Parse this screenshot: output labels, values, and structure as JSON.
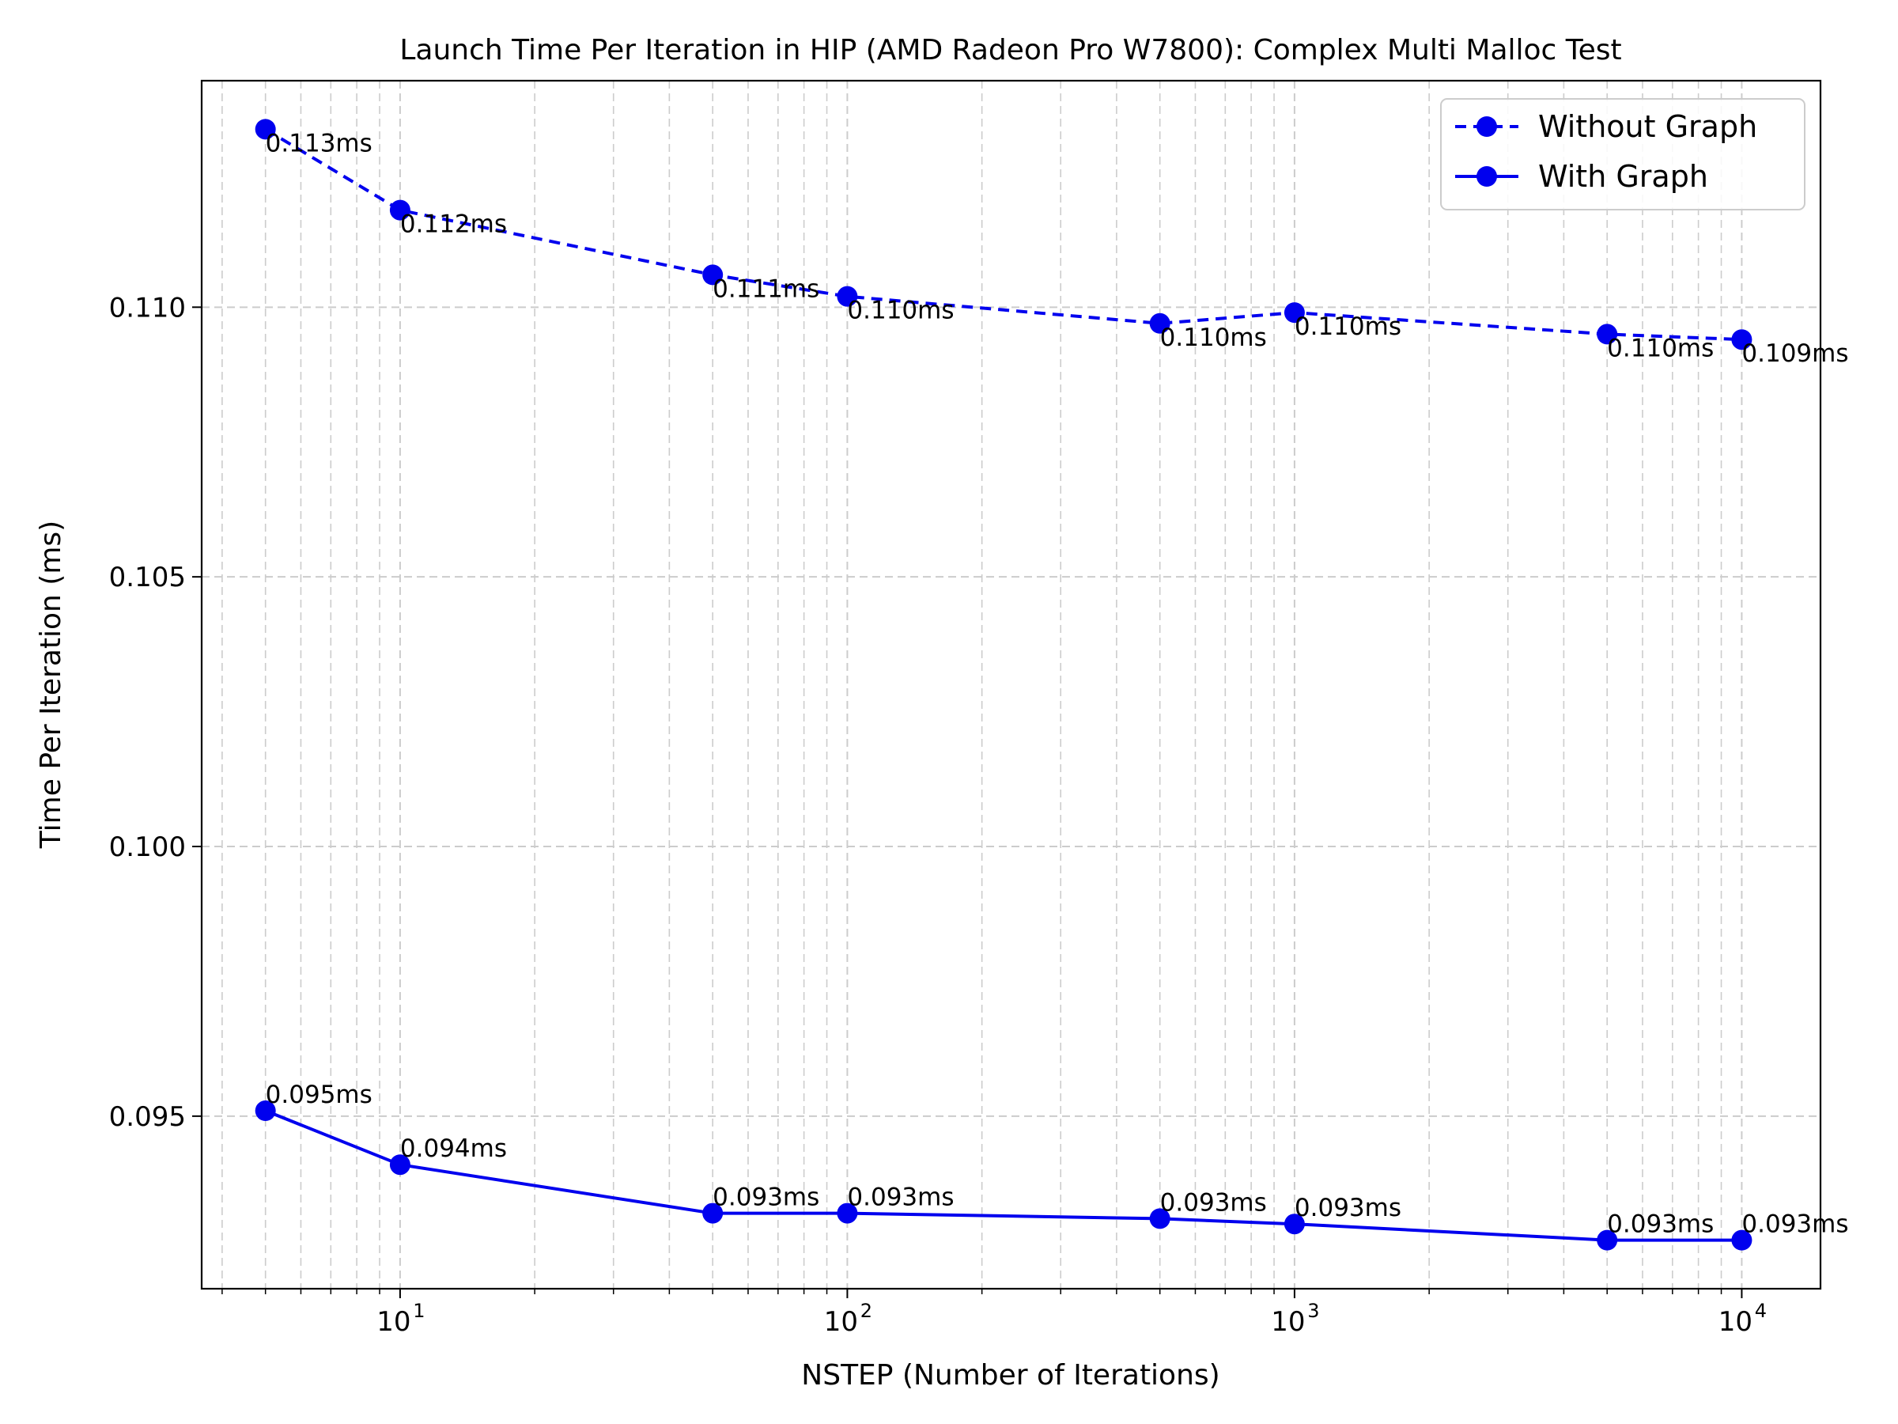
{
  "chart_data": {
    "type": "line",
    "title": "Launch Time Per Iteration in HIP (AMD Radeon Pro W7800): Complex Multi Malloc Test",
    "xlabel": "NSTEP (Number of Iterations)",
    "ylabel": "Time Per Iteration (ms)",
    "x_scale": "log",
    "xlim": [
      3.6,
      15000
    ],
    "ylim": [
      0.0918,
      0.1142
    ],
    "x_ticks": [
      {
        "value": 10,
        "base": "10",
        "exp": "1"
      },
      {
        "value": 100,
        "base": "10",
        "exp": "2"
      },
      {
        "value": 1000,
        "base": "10",
        "exp": "3"
      },
      {
        "value": 10000,
        "base": "10",
        "exp": "4"
      }
    ],
    "y_ticks": [
      {
        "value": 0.095,
        "label": "0.095"
      },
      {
        "value": 0.1,
        "label": "0.100"
      },
      {
        "value": 0.105,
        "label": "0.105"
      },
      {
        "value": 0.11,
        "label": "0.110"
      }
    ],
    "grid": true,
    "legend_position": "top-right",
    "x": [
      5,
      10,
      50,
      100,
      500,
      1000,
      5000,
      10000
    ],
    "series": [
      {
        "name": "Without Graph",
        "style": "dashed",
        "color": "#0000ee",
        "values": [
          0.1133,
          0.1118,
          0.1106,
          0.1102,
          0.1097,
          0.1099,
          0.1095,
          0.1094
        ],
        "labels": [
          "0.113ms",
          "0.112ms",
          "0.111ms",
          "0.110ms",
          "0.110ms",
          "0.110ms",
          "0.110ms",
          "0.109ms"
        ]
      },
      {
        "name": "With Graph",
        "style": "solid",
        "color": "#0000ee",
        "values": [
          0.0951,
          0.0941,
          0.0932,
          0.0932,
          0.0931,
          0.093,
          0.0927,
          0.0927
        ],
        "labels": [
          "0.095ms",
          "0.094ms",
          "0.093ms",
          "0.093ms",
          "0.093ms",
          "0.093ms",
          "0.093ms",
          "0.093ms"
        ]
      }
    ]
  }
}
